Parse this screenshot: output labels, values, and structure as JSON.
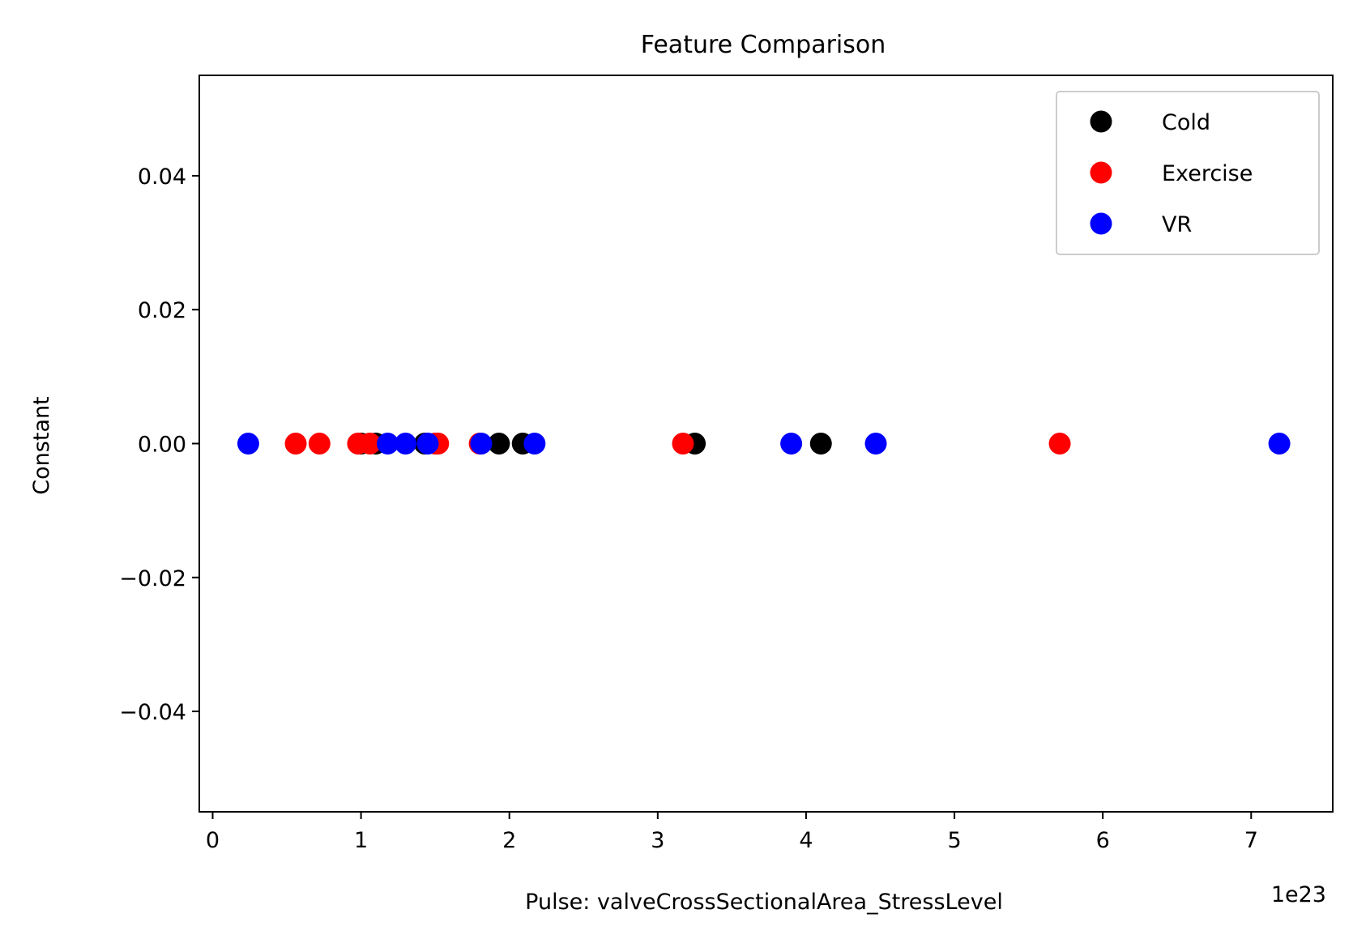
{
  "chart_data": {
    "type": "scatter",
    "title": "Feature Comparison",
    "xlabel": "Pulse: valveCrossSectionalArea_StressLevel",
    "ylabel": "Constant",
    "x_offset_label": "1e23",
    "xlim": [
      -0.09,
      7.55
    ],
    "ylim": [
      -0.055,
      0.055
    ],
    "x_ticks": [
      0,
      1,
      2,
      3,
      4,
      5,
      6,
      7
    ],
    "x_tick_labels": [
      "0",
      "1",
      "2",
      "3",
      "4",
      "5",
      "6",
      "7"
    ],
    "y_ticks": [
      0.04,
      0.02,
      0.0,
      -0.02,
      -0.04
    ],
    "y_tick_labels": [
      "0.04",
      "0.02",
      "0.00",
      "−0.02",
      "−0.04"
    ],
    "grid": false,
    "legend_position": "top-right",
    "series": [
      {
        "name": "Cold",
        "color": "#000000",
        "x": [
          1.0,
          1.1,
          1.43,
          1.93,
          2.09,
          3.25,
          4.1
        ],
        "y": [
          0,
          0,
          0,
          0,
          0,
          0,
          0
        ]
      },
      {
        "name": "Exercise",
        "color": "#ff0000",
        "x": [
          0.56,
          0.72,
          0.98,
          1.06,
          1.5,
          1.52,
          1.8,
          3.17,
          5.71
        ],
        "y": [
          0,
          0,
          0,
          0,
          0,
          0,
          0,
          0,
          0
        ]
      },
      {
        "name": "VR",
        "color": "#0000ff",
        "x": [
          0.24,
          1.18,
          1.3,
          1.45,
          1.81,
          2.17,
          3.9,
          4.47,
          7.19
        ],
        "y": [
          0,
          0,
          0,
          0,
          0,
          0,
          0,
          0,
          0
        ]
      }
    ]
  }
}
